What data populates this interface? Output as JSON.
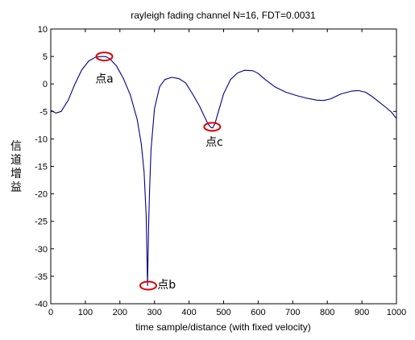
{
  "chart_data": {
    "type": "line",
    "title": "rayleigh fading channel  N=16, FDT=0.0031",
    "xlabel": "time sample/distance (with fixed velocity)",
    "ylabel": "信道增益",
    "xlim": [
      0,
      1000
    ],
    "ylim": [
      -40,
      10
    ],
    "xticks": [
      0,
      100,
      200,
      300,
      400,
      500,
      600,
      700,
      800,
      900,
      1000
    ],
    "yticks": [
      10,
      5,
      0,
      -5,
      -10,
      -15,
      -20,
      -25,
      -30,
      -35,
      -40
    ],
    "grid": false,
    "series": [
      {
        "color": "#00008b",
        "x": [
          0,
          15,
          30,
          50,
          70,
          90,
          110,
          130,
          150,
          160,
          170,
          190,
          210,
          230,
          250,
          262,
          270,
          276,
          280,
          283,
          286,
          290,
          300,
          315,
          330,
          350,
          370,
          390,
          410,
          430,
          445,
          455,
          463,
          468,
          475,
          485,
          500,
          520,
          540,
          560,
          585,
          600,
          620,
          650,
          680,
          710,
          740,
          770,
          790,
          810,
          840,
          870,
          890,
          910,
          930,
          950,
          970,
          985,
          1000
        ],
        "y": [
          -4.8,
          -5.3,
          -5.0,
          -3.0,
          0.0,
          2.6,
          4.2,
          4.9,
          5.0,
          4.95,
          4.6,
          3.3,
          1.0,
          -2.0,
          -6.5,
          -11.0,
          -16.0,
          -24.0,
          -36.7,
          -26.0,
          -19.0,
          -12.0,
          -4.5,
          -0.5,
          0.8,
          1.2,
          1.0,
          0.2,
          -1.8,
          -4.0,
          -6.0,
          -7.3,
          -7.9,
          -8.0,
          -7.2,
          -5.0,
          -1.8,
          0.8,
          2.0,
          2.5,
          2.4,
          1.9,
          0.8,
          -0.6,
          -1.5,
          -2.1,
          -2.6,
          -2.95,
          -3.0,
          -2.7,
          -1.8,
          -1.3,
          -1.2,
          -1.5,
          -2.3,
          -3.3,
          -4.3,
          -5.1,
          -6.3
        ]
      }
    ],
    "annotations": [
      {
        "label": "点a",
        "x": 155,
        "y": 5.0,
        "label_x": 155,
        "label_y": 1.0
      },
      {
        "label": "点b",
        "x": 282,
        "y": -36.7,
        "label_x": 335,
        "label_y": -36.5
      },
      {
        "label": "点c",
        "x": 467,
        "y": -7.8,
        "label_x": 473,
        "label_y": -10.5
      }
    ],
    "marker_color": "#e00000"
  }
}
